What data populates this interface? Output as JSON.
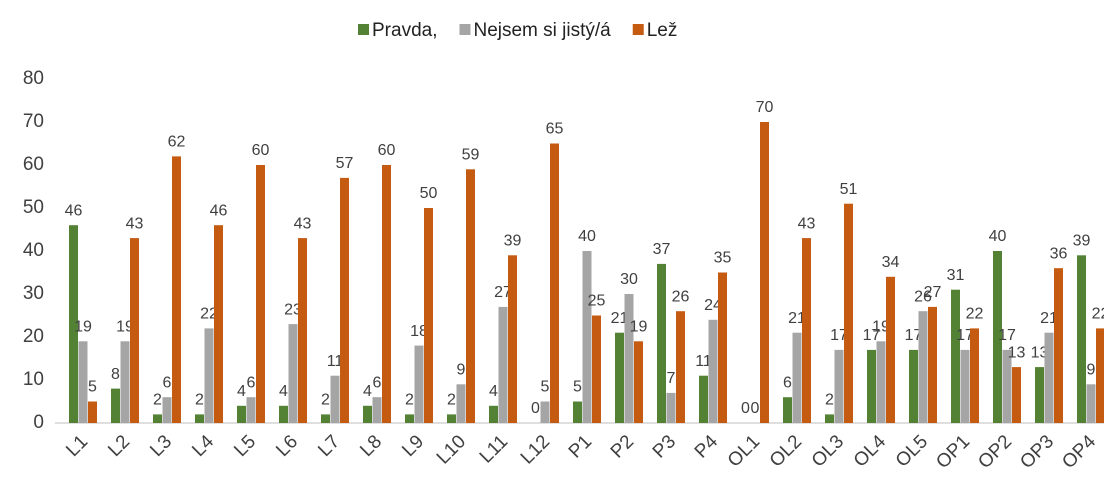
{
  "chart_data": {
    "type": "bar",
    "categories": [
      "L1",
      "L2",
      "L3",
      "L4",
      "L5",
      "L6",
      "L7",
      "L8",
      "L9",
      "L10",
      "L11",
      "L12",
      "P1",
      "P2",
      "P3",
      "P4",
      "OL1",
      "OL2",
      "OL3",
      "OL4",
      "OL5",
      "OP1",
      "OP2",
      "OP3",
      "OP4"
    ],
    "series": [
      {
        "name": "Pravda,",
        "color": "#548235",
        "values": [
          46,
          8,
          2,
          2,
          4,
          4,
          2,
          4,
          2,
          2,
          4,
          0,
          5,
          21,
          37,
          11,
          0,
          6,
          2,
          17,
          17,
          31,
          40,
          13,
          39
        ]
      },
      {
        "name": "Nejsem si jistý/á",
        "color": "#a5a5a5",
        "values": [
          19,
          19,
          6,
          22,
          6,
          23,
          11,
          6,
          18,
          9,
          27,
          5,
          40,
          30,
          7,
          24,
          0,
          21,
          17,
          19,
          26,
          17,
          17,
          21,
          9
        ]
      },
      {
        "name": "Lež",
        "color": "#c55a11",
        "values": [
          5,
          43,
          62,
          46,
          60,
          43,
          57,
          60,
          50,
          59,
          39,
          65,
          25,
          19,
          26,
          35,
          70,
          43,
          51,
          34,
          27,
          22,
          13,
          36,
          22
        ]
      }
    ],
    "ylim": [
      0,
      80
    ],
    "yticks": [
      0,
      10,
      20,
      30,
      40,
      50,
      60,
      70,
      80
    ],
    "legend": "top"
  }
}
